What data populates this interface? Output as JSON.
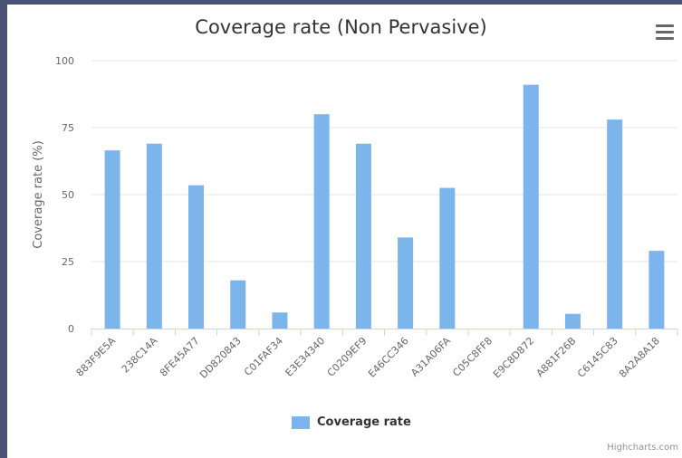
{
  "chart_data": {
    "type": "bar",
    "title": "Coverage rate (Non Pervasive)",
    "ylabel": "Coverage rate (%)",
    "xlabel": "",
    "ylim": [
      0,
      100
    ],
    "yticks": [
      0,
      25,
      50,
      75,
      100
    ],
    "categories": [
      "883F9E5A",
      "238C14A",
      "8FE45A77",
      "DD820843",
      "C01FAF34",
      "E3E34340",
      "C0209EF9",
      "E46CC346",
      "A31A06FA",
      "C05C8FF8",
      "E9C8D872",
      "A881F26B",
      "C6145C83",
      "8A2A8A18"
    ],
    "series": [
      {
        "name": "Coverage rate",
        "values": [
          66.5,
          69,
          53.5,
          18,
          6,
          80,
          69,
          34,
          52.5,
          0,
          91,
          5.5,
          78,
          29
        ]
      }
    ],
    "legend": "bottom-center",
    "grid": true
  },
  "colors": {
    "bar": "#7cb5ec",
    "grid": "#e6e6e6",
    "frame": "#4a5377"
  },
  "credits": "Highcharts.com",
  "menu_icon": "hamburger-menu-icon"
}
